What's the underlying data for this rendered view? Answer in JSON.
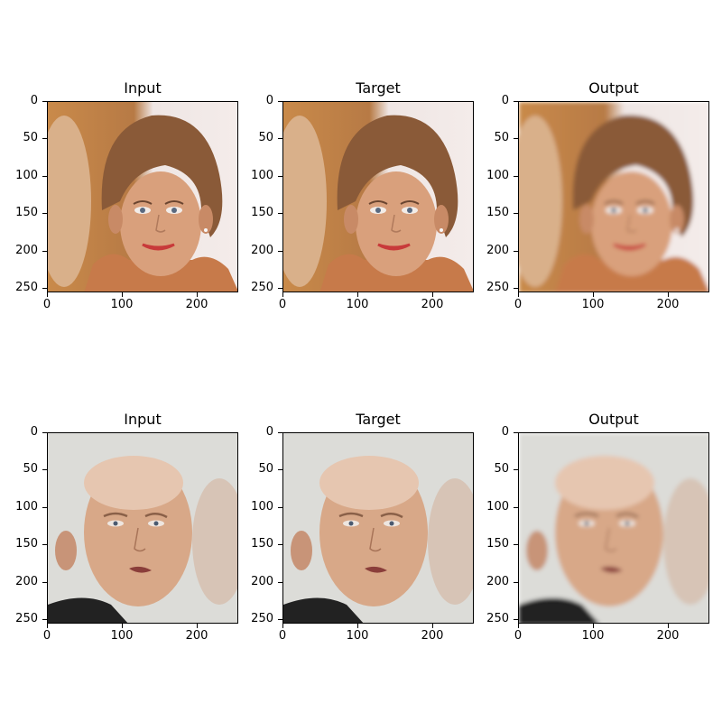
{
  "figure": {
    "rows": [
      {
        "subject": "woman-portrait",
        "panels": [
          {
            "title": "Input",
            "variant": "sharp"
          },
          {
            "title": "Target",
            "variant": "sharp"
          },
          {
            "title": "Output",
            "variant": "blurred"
          }
        ]
      },
      {
        "subject": "man-portrait",
        "panels": [
          {
            "title": "Input",
            "variant": "sharp"
          },
          {
            "title": "Target",
            "variant": "sharp"
          },
          {
            "title": "Output",
            "variant": "blurred"
          }
        ]
      }
    ],
    "y_ticks": [
      "0",
      "50",
      "100",
      "150",
      "200",
      "250"
    ],
    "x_ticks": [
      "0",
      "100",
      "200"
    ]
  },
  "colors": {
    "woman_bg_left": "#c98a4a",
    "woman_bg_right": "#efe6e4",
    "woman_skin": "#d9a07c",
    "woman_hair": "#8a5a38",
    "woman_lips": "#c83a3a",
    "man_bg": "#dcdcd8",
    "man_skin": "#d8a888",
    "man_shirt": "#222222"
  }
}
